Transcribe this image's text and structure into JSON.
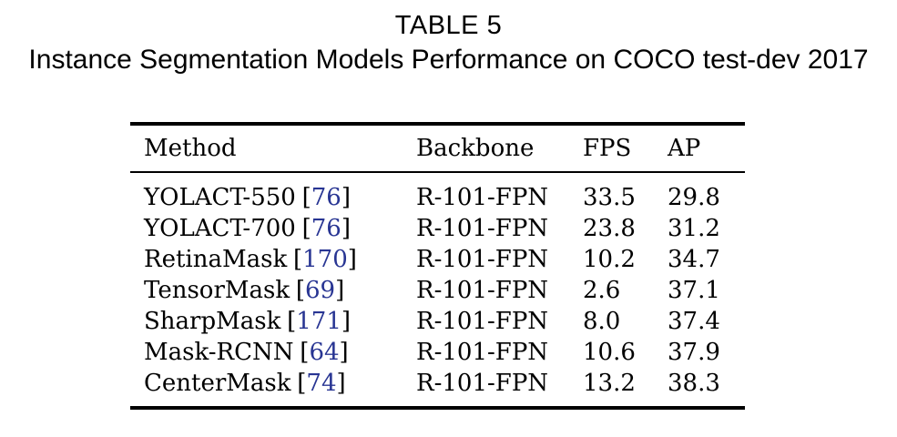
{
  "caption": {
    "label": "TABLE 5",
    "title": "Instance Segmentation Models Performance on COCO test-dev 2017"
  },
  "table": {
    "columns": [
      "Method",
      "Backbone",
      "FPS",
      "AP"
    ],
    "cite_open": "[",
    "cite_close": "]",
    "rows": [
      {
        "method": "YOLACT-550",
        "cite": "76",
        "backbone": "R-101-FPN",
        "fps": "33.5",
        "ap": "29.8"
      },
      {
        "method": "YOLACT-700",
        "cite": "76",
        "backbone": "R-101-FPN",
        "fps": "23.8",
        "ap": "31.2"
      },
      {
        "method": "RetinaMask",
        "cite": "170",
        "backbone": "R-101-FPN",
        "fps": "10.2",
        "ap": "34.7"
      },
      {
        "method": "TensorMask",
        "cite": "69",
        "backbone": "R-101-FPN",
        "fps": "2.6",
        "ap": "37.1"
      },
      {
        "method": "SharpMask",
        "cite": "171",
        "backbone": "R-101-FPN",
        "fps": "8.0",
        "ap": "37.4"
      },
      {
        "method": "Mask-RCNN",
        "cite": "64",
        "backbone": "R-101-FPN",
        "fps": "10.6",
        "ap": "37.9"
      },
      {
        "method": "CenterMask",
        "cite": "74",
        "backbone": "R-101-FPN",
        "fps": "13.2",
        "ap": "38.3"
      }
    ]
  },
  "colors": {
    "text": "#000000",
    "rule": "#000000",
    "citation_link": "#283593",
    "background": "#ffffff"
  }
}
